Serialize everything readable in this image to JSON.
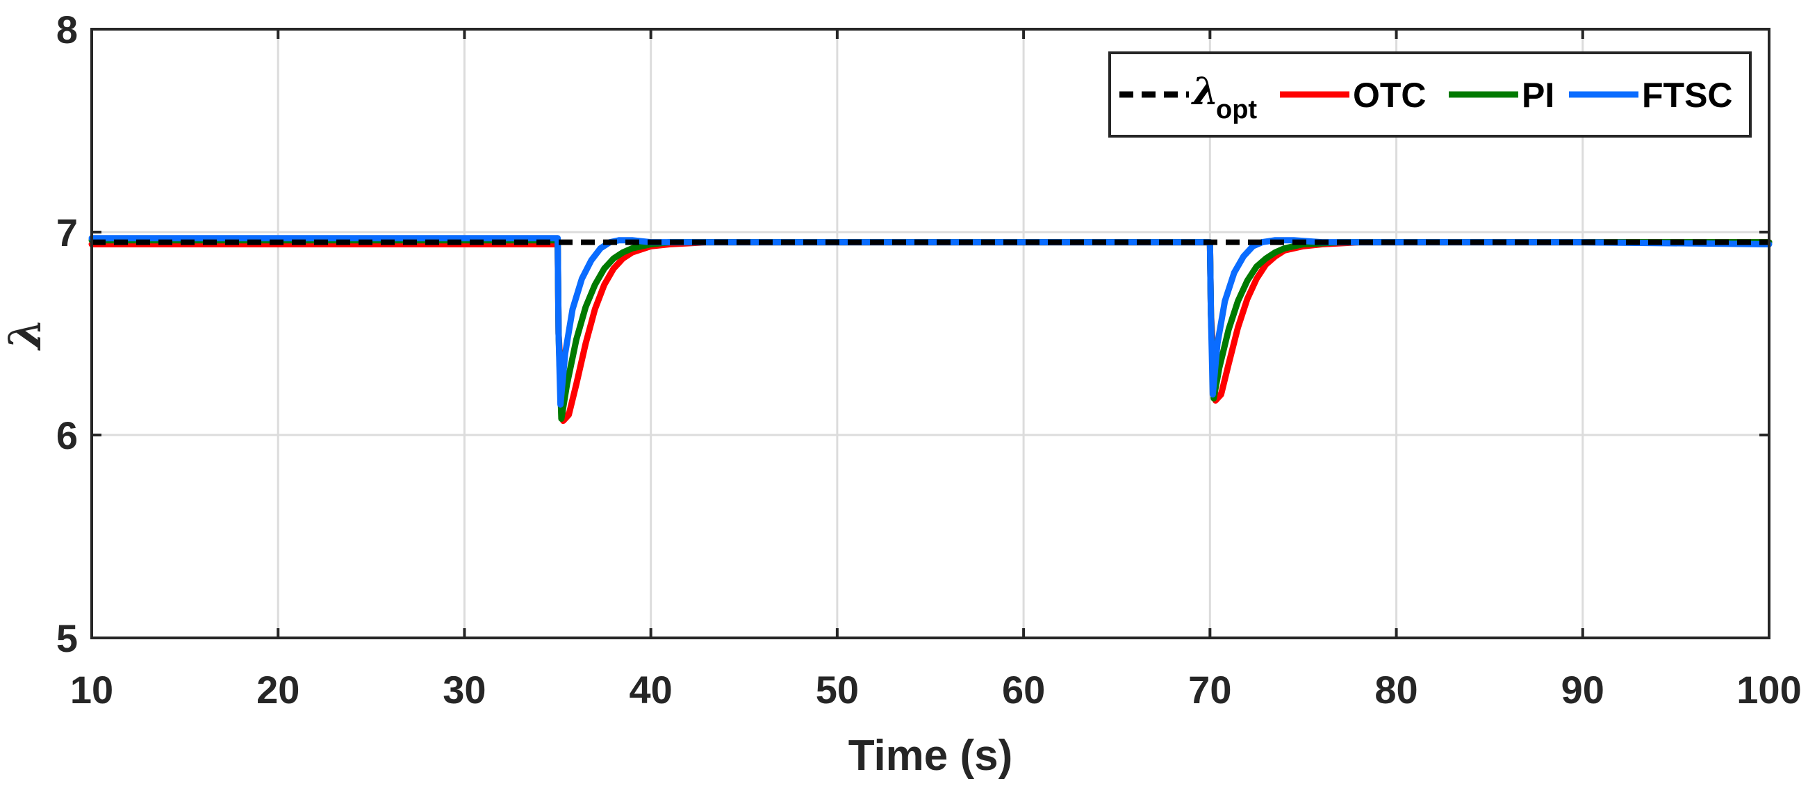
{
  "chart_data": {
    "type": "line",
    "title": "",
    "xlabel": "Time (s)",
    "ylabel": "λ",
    "xlim": [
      10,
      100
    ],
    "ylim": [
      5,
      8
    ],
    "xticks": [
      10,
      20,
      30,
      40,
      50,
      60,
      70,
      80,
      90,
      100
    ],
    "yticks": [
      5,
      6,
      7,
      8
    ],
    "grid": true,
    "legend": {
      "placement": "top-right",
      "entries": [
        {
          "symbol": "λ",
          "subscript": "opt",
          "label": "λopt",
          "style": "dashed",
          "color": "#000000"
        },
        {
          "label": "OTC",
          "style": "solid",
          "color": "#ff0000"
        },
        {
          "label": "PI",
          "style": "solid",
          "color": "#007a00"
        },
        {
          "label": "FTSC",
          "style": "solid",
          "color": "#0a6cff"
        }
      ]
    },
    "series": [
      {
        "name": "λopt",
        "color": "#000000",
        "style": "dashed",
        "x": [
          10,
          100
        ],
        "y": [
          6.95,
          6.95
        ]
      },
      {
        "name": "OTC",
        "color": "#ff0000",
        "style": "solid",
        "x": [
          10,
          35,
          35.05,
          35.3,
          35.6,
          36,
          36.5,
          37,
          37.5,
          38,
          38.5,
          39,
          40,
          41,
          43,
          46,
          50,
          60,
          70,
          70.05,
          70.3,
          70.6,
          71,
          71.5,
          72,
          72.5,
          73,
          73.5,
          74,
          75,
          76,
          78,
          82,
          90,
          100
        ],
        "y": [
          6.94,
          6.94,
          6.5,
          6.07,
          6.1,
          6.25,
          6.45,
          6.62,
          6.74,
          6.82,
          6.87,
          6.9,
          6.93,
          6.94,
          6.95,
          6.95,
          6.95,
          6.95,
          6.95,
          6.6,
          6.17,
          6.2,
          6.35,
          6.53,
          6.67,
          6.77,
          6.84,
          6.88,
          6.91,
          6.93,
          6.94,
          6.95,
          6.95,
          6.95,
          6.95
        ]
      },
      {
        "name": "PI",
        "color": "#007a00",
        "style": "solid",
        "x": [
          10,
          35,
          35.05,
          35.2,
          35.5,
          36,
          36.5,
          37,
          37.5,
          38,
          38.5,
          39,
          40,
          41,
          43,
          46,
          50,
          60,
          70,
          70.05,
          70.2,
          70.5,
          71,
          71.5,
          72,
          72.5,
          73,
          73.5,
          74,
          75,
          77,
          80,
          90,
          100
        ],
        "y": [
          6.96,
          6.96,
          6.5,
          6.08,
          6.25,
          6.47,
          6.63,
          6.74,
          6.82,
          6.87,
          6.9,
          6.92,
          6.94,
          6.95,
          6.95,
          6.95,
          6.95,
          6.95,
          6.95,
          6.6,
          6.18,
          6.33,
          6.52,
          6.66,
          6.76,
          6.83,
          6.87,
          6.9,
          6.92,
          6.94,
          6.95,
          6.95,
          6.95,
          6.95
        ]
      },
      {
        "name": "FTSC",
        "color": "#0a6cff",
        "style": "solid",
        "x": [
          10,
          35,
          35.05,
          35.15,
          35.4,
          35.8,
          36.3,
          36.8,
          37.3,
          37.8,
          38.3,
          39,
          40,
          42,
          45,
          50,
          60,
          70,
          70.05,
          70.15,
          70.4,
          70.8,
          71.3,
          71.8,
          72.3,
          72.8,
          73.5,
          74.5,
          76,
          80,
          90,
          100
        ],
        "y": [
          6.97,
          6.97,
          6.5,
          6.15,
          6.4,
          6.62,
          6.77,
          6.86,
          6.92,
          6.95,
          6.96,
          6.96,
          6.95,
          6.95,
          6.95,
          6.95,
          6.95,
          6.95,
          6.6,
          6.2,
          6.45,
          6.66,
          6.8,
          6.88,
          6.93,
          6.95,
          6.96,
          6.96,
          6.95,
          6.95,
          6.95,
          6.94
        ]
      }
    ]
  }
}
